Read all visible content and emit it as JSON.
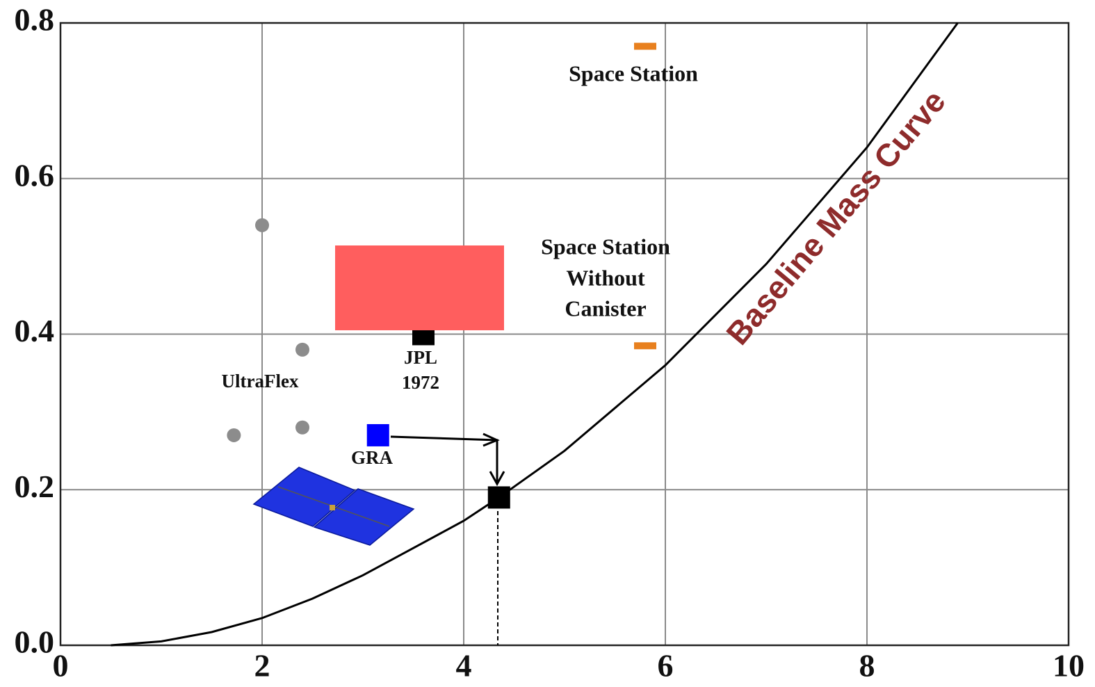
{
  "chart_data": {
    "type": "scatter",
    "xlim": [
      0,
      10
    ],
    "ylim": [
      0,
      0.8
    ],
    "xticks": [
      0,
      2,
      4,
      6,
      8,
      10
    ],
    "yticks": [
      {
        "value": 0,
        "label": "0.0"
      },
      0.2,
      0.4,
      0.6,
      0.8
    ],
    "grid": true,
    "series": [
      {
        "type": "line",
        "color": "#000000",
        "x": [
          0.5,
          1,
          1.5,
          2,
          2.5,
          3,
          3.5,
          4,
          4.35,
          5,
          6,
          7,
          8,
          8.9
        ],
        "values": [
          0,
          0.005,
          0.017,
          0.035,
          0.06,
          0.09,
          0.125,
          0.16,
          0.19,
          0.25,
          0.36,
          0.49,
          0.64,
          0.8
        ]
      },
      {
        "type": "scatter",
        "marker": "circle",
        "color": "#8c8c8c",
        "x": [
          2.0,
          2.4,
          2.4,
          1.72
        ],
        "values": [
          0.54,
          0.38,
          0.28,
          0.27
        ]
      },
      {
        "type": "scatter",
        "marker": "square",
        "color": "#000000",
        "x": [
          3.6,
          4.35
        ],
        "values": [
          0.4,
          0.19
        ]
      },
      {
        "type": "scatter",
        "marker": "square",
        "color": "#0000ff",
        "x": [
          3.15
        ],
        "values": [
          0.27
        ]
      },
      {
        "type": "scatter",
        "marker": "dash",
        "color": "#e8801e",
        "x": [
          5.8,
          5.8
        ],
        "values": [
          0.77,
          0.385
        ]
      }
    ],
    "annotations": {
      "space_station": "Space Station",
      "space_station_no_canister": [
        "Space Station",
        "Without",
        "Canister"
      ],
      "ultraflex": "UltraFlex",
      "jpl": [
        "JPL",
        "1972"
      ],
      "gra": "GRA",
      "curve": "Baseline Mass Curve"
    }
  }
}
